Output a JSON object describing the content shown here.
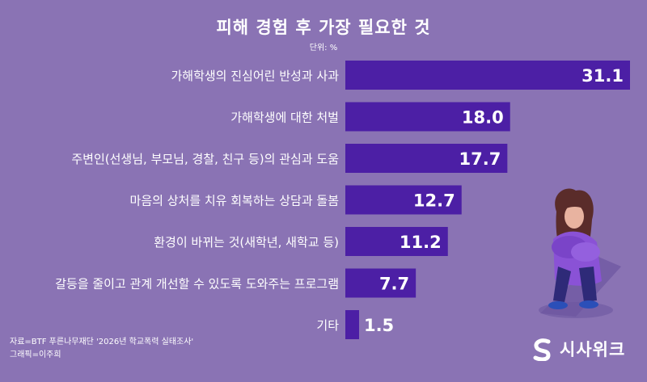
{
  "header": {
    "title": "피해 경험 후 가장 필요한 것",
    "unit": "단위: %"
  },
  "footer": {
    "source": "자료=BTF 푸른나무재단 '2026년 학교폭력 실태조사'",
    "credit": "그래픽=이주희",
    "logo_text": "시사위크"
  },
  "colors": {
    "background": "#8a73b4",
    "bar": "#4c1fa5",
    "text": "#ffffff"
  },
  "chart_data": {
    "type": "bar",
    "orientation": "horizontal",
    "title": "피해 경험 후 가장 필요한 것",
    "xlabel": "",
    "ylabel": "",
    "xlim": [
      0,
      31.1
    ],
    "grid": false,
    "categories": [
      "가해학생의 진심어린 반성과 사과",
      "가해학생에 대한 처벌",
      "주변인(선생님, 부모님, 경찰, 친구 등)의 관심과 도움",
      "마음의 상처를 치유 회복하는 상담과 돌봄",
      "환경이 바뀌는 것(새학년, 새학교 등)",
      "갈등을 줄이고 관계 개선할 수 있도록 도와주는 프로그램",
      "기타"
    ],
    "values": [
      31.1,
      18.0,
      17.7,
      12.7,
      11.2,
      7.7,
      1.5
    ],
    "value_labels": [
      "31.1",
      "18.0",
      "17.7",
      "12.7",
      "11.2",
      "7.7",
      "1.5"
    ]
  }
}
